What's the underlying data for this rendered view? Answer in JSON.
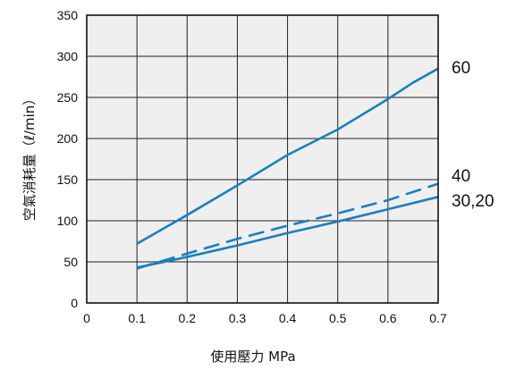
{
  "chart_data": {
    "type": "line",
    "xlabel": "使用壓力 MPa",
    "ylabel": "空氣消耗量（ℓ/min）",
    "xlim": [
      0,
      0.7
    ],
    "ylim": [
      0,
      350
    ],
    "x_ticks": [
      "0",
      "0.1",
      "0.2",
      "0.3",
      "0.4",
      "0.5",
      "0.6",
      "0.7"
    ],
    "y_ticks": [
      "0",
      "50",
      "100",
      "150",
      "200",
      "250",
      "300",
      "350"
    ],
    "grid": true,
    "background_color": "#efefef",
    "series": [
      {
        "name": "60",
        "style": "solid",
        "color": "#1a7fc1",
        "x": [
          0.1,
          0.2,
          0.3,
          0.4,
          0.5,
          0.6,
          0.65,
          0.7
        ],
        "y": [
          72,
          107,
          143,
          180,
          211,
          248,
          268,
          285
        ]
      },
      {
        "name": "40",
        "style": "dashed",
        "color": "#1a7fc1",
        "x": [
          0.1,
          0.2,
          0.3,
          0.4,
          0.5,
          0.6,
          0.7
        ],
        "y": [
          42,
          60,
          78,
          94,
          109,
          125,
          145
        ]
      },
      {
        "name": "30,20",
        "style": "solid",
        "color": "#1a7fc1",
        "x": [
          0.1,
          0.2,
          0.3,
          0.4,
          0.5,
          0.6,
          0.7
        ],
        "y": [
          43,
          56,
          70,
          85,
          99,
          114,
          129
        ]
      }
    ]
  }
}
